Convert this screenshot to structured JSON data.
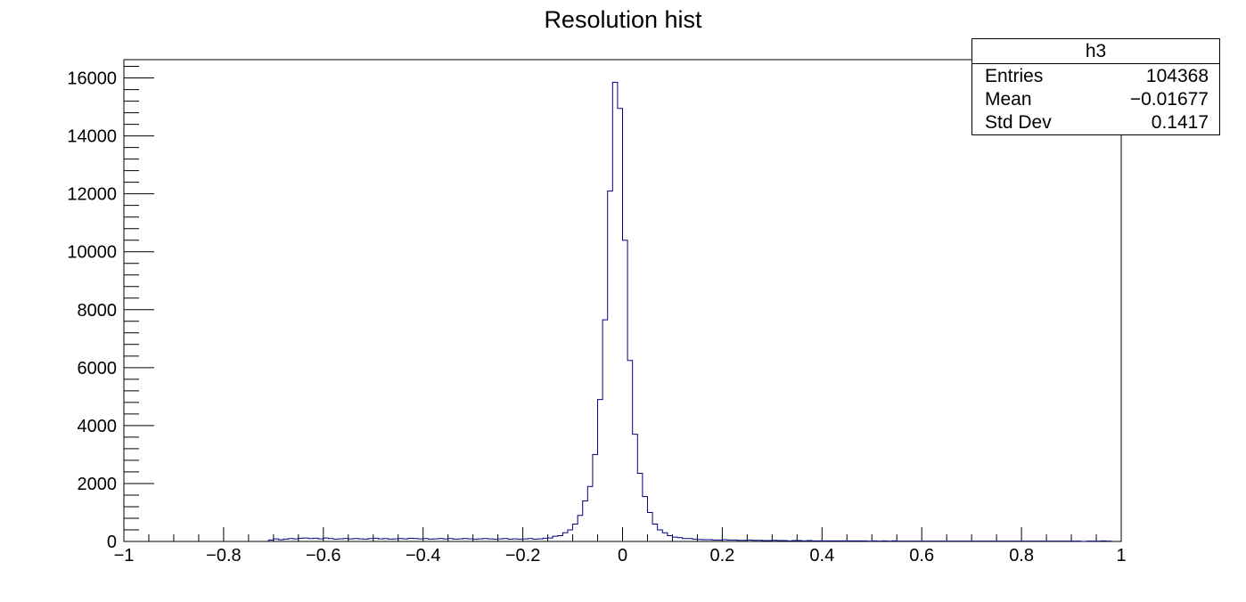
{
  "chart_data": {
    "type": "histogram",
    "title": "Resolution hist",
    "xlabel": "",
    "ylabel": "",
    "xlim": [
      -1,
      1
    ],
    "ylim": [
      0,
      16632
    ],
    "x_ticks": [
      "−1",
      "−0.8",
      "−0.6",
      "−0.4",
      "−0.2",
      "0",
      "0.2",
      "0.4",
      "0.6",
      "0.8",
      "1"
    ],
    "y_ticks": [
      "0",
      "2000",
      "4000",
      "6000",
      "8000",
      "10000",
      "12000",
      "14000",
      "16000"
    ],
    "series": [
      {
        "color": "#000080",
        "bin_width": 0.01,
        "bins": [
          [
            -0.71,
            50
          ],
          [
            -0.7,
            90
          ],
          [
            -0.69,
            60
          ],
          [
            -0.68,
            80
          ],
          [
            -0.67,
            100
          ],
          [
            -0.66,
            90
          ],
          [
            -0.65,
            110
          ],
          [
            -0.64,
            120
          ],
          [
            -0.63,
            100
          ],
          [
            -0.62,
            110
          ],
          [
            -0.61,
            90
          ],
          [
            -0.6,
            120
          ],
          [
            -0.59,
            100
          ],
          [
            -0.58,
            80
          ],
          [
            -0.57,
            90
          ],
          [
            -0.56,
            100
          ],
          [
            -0.55,
            90
          ],
          [
            -0.54,
            100
          ],
          [
            -0.53,
            90
          ],
          [
            -0.52,
            80
          ],
          [
            -0.51,
            100
          ],
          [
            -0.5,
            110
          ],
          [
            -0.49,
            90
          ],
          [
            -0.48,
            100
          ],
          [
            -0.47,
            80
          ],
          [
            -0.46,
            90
          ],
          [
            -0.45,
            100
          ],
          [
            -0.44,
            90
          ],
          [
            -0.43,
            110
          ],
          [
            -0.42,
            100
          ],
          [
            -0.41,
            90
          ],
          [
            -0.4,
            100
          ],
          [
            -0.39,
            80
          ],
          [
            -0.38,
            90
          ],
          [
            -0.37,
            100
          ],
          [
            -0.36,
            90
          ],
          [
            -0.35,
            100
          ],
          [
            -0.34,
            80
          ],
          [
            -0.33,
            90
          ],
          [
            -0.32,
            100
          ],
          [
            -0.31,
            90
          ],
          [
            -0.3,
            80
          ],
          [
            -0.29,
            90
          ],
          [
            -0.28,
            100
          ],
          [
            -0.27,
            90
          ],
          [
            -0.26,
            80
          ],
          [
            -0.25,
            90
          ],
          [
            -0.24,
            100
          ],
          [
            -0.23,
            80
          ],
          [
            -0.22,
            90
          ],
          [
            -0.21,
            80
          ],
          [
            -0.2,
            90
          ],
          [
            -0.19,
            100
          ],
          [
            -0.18,
            80
          ],
          [
            -0.17,
            90
          ],
          [
            -0.16,
            110
          ],
          [
            -0.15,
            120
          ],
          [
            -0.14,
            180
          ],
          [
            -0.13,
            200
          ],
          [
            -0.12,
            300
          ],
          [
            -0.11,
            400
          ],
          [
            -0.1,
            600
          ],
          [
            -0.09,
            900
          ],
          [
            -0.08,
            1400
          ],
          [
            -0.07,
            1900
          ],
          [
            -0.06,
            3000
          ],
          [
            -0.05,
            4900
          ],
          [
            -0.04,
            7650
          ],
          [
            -0.03,
            12100
          ],
          [
            -0.02,
            15850
          ],
          [
            -0.01,
            14950
          ],
          [
            0.0,
            10400
          ],
          [
            0.01,
            6250
          ],
          [
            0.02,
            3700
          ],
          [
            0.03,
            2350
          ],
          [
            0.04,
            1550
          ],
          [
            0.05,
            1000
          ],
          [
            0.06,
            600
          ],
          [
            0.07,
            400
          ],
          [
            0.08,
            300
          ],
          [
            0.09,
            200
          ],
          [
            0.1,
            150
          ],
          [
            0.11,
            130
          ],
          [
            0.12,
            100
          ],
          [
            0.13,
            100
          ],
          [
            0.14,
            80
          ],
          [
            0.15,
            70
          ],
          [
            0.16,
            60
          ],
          [
            0.17,
            60
          ],
          [
            0.18,
            50
          ],
          [
            0.19,
            50
          ],
          [
            0.2,
            60
          ],
          [
            0.21,
            50
          ],
          [
            0.22,
            50
          ],
          [
            0.23,
            40
          ],
          [
            0.24,
            40
          ],
          [
            0.25,
            50
          ],
          [
            0.26,
            40
          ],
          [
            0.27,
            40
          ],
          [
            0.28,
            30
          ],
          [
            0.29,
            30
          ],
          [
            0.3,
            40
          ],
          [
            0.31,
            30
          ],
          [
            0.32,
            30
          ],
          [
            0.33,
            20
          ],
          [
            0.34,
            30
          ],
          [
            0.35,
            30
          ],
          [
            0.36,
            20
          ],
          [
            0.37,
            30
          ],
          [
            0.38,
            20
          ],
          [
            0.39,
            20
          ],
          [
            0.4,
            20
          ],
          [
            0.41,
            20
          ],
          [
            0.42,
            20
          ],
          [
            0.43,
            20
          ],
          [
            0.44,
            20
          ],
          [
            0.45,
            20
          ],
          [
            0.46,
            20
          ],
          [
            0.47,
            20
          ],
          [
            0.48,
            20
          ],
          [
            0.49,
            10
          ],
          [
            0.5,
            20
          ],
          [
            0.51,
            10
          ],
          [
            0.52,
            20
          ],
          [
            0.53,
            10
          ],
          [
            0.54,
            20
          ],
          [
            0.55,
            10
          ],
          [
            0.56,
            10
          ],
          [
            0.57,
            10
          ],
          [
            0.58,
            10
          ],
          [
            0.59,
            10
          ],
          [
            0.6,
            10
          ],
          [
            0.61,
            10
          ],
          [
            0.62,
            10
          ],
          [
            0.63,
            10
          ],
          [
            0.64,
            10
          ],
          [
            0.65,
            10
          ],
          [
            0.66,
            10
          ],
          [
            0.67,
            10
          ],
          [
            0.68,
            10
          ],
          [
            0.69,
            10
          ],
          [
            0.7,
            10
          ],
          [
            0.71,
            10
          ],
          [
            0.72,
            10
          ],
          [
            0.73,
            10
          ],
          [
            0.74,
            10
          ],
          [
            0.75,
            10
          ],
          [
            0.76,
            10
          ],
          [
            0.77,
            10
          ],
          [
            0.78,
            10
          ],
          [
            0.79,
            10
          ],
          [
            0.8,
            10
          ],
          [
            0.81,
            10
          ],
          [
            0.82,
            10
          ],
          [
            0.83,
            10
          ],
          [
            0.84,
            10
          ],
          [
            0.85,
            10
          ],
          [
            0.86,
            10
          ],
          [
            0.87,
            10
          ],
          [
            0.88,
            10
          ],
          [
            0.89,
            10
          ],
          [
            0.9,
            10
          ],
          [
            0.91,
            10
          ],
          [
            0.92,
            0
          ],
          [
            0.93,
            10
          ],
          [
            0.94,
            10
          ],
          [
            0.95,
            10
          ],
          [
            0.96,
            20
          ],
          [
            0.97,
            10
          ]
        ]
      }
    ],
    "grid": false,
    "legend": "none",
    "stats_box": {
      "name": "h3",
      "rows": [
        {
          "label": "Entries",
          "value": "104368"
        },
        {
          "label": "Mean",
          "value": "−0.01677"
        },
        {
          "label": "Std Dev",
          "value": "0.1417"
        }
      ],
      "placement": "top-right"
    }
  }
}
